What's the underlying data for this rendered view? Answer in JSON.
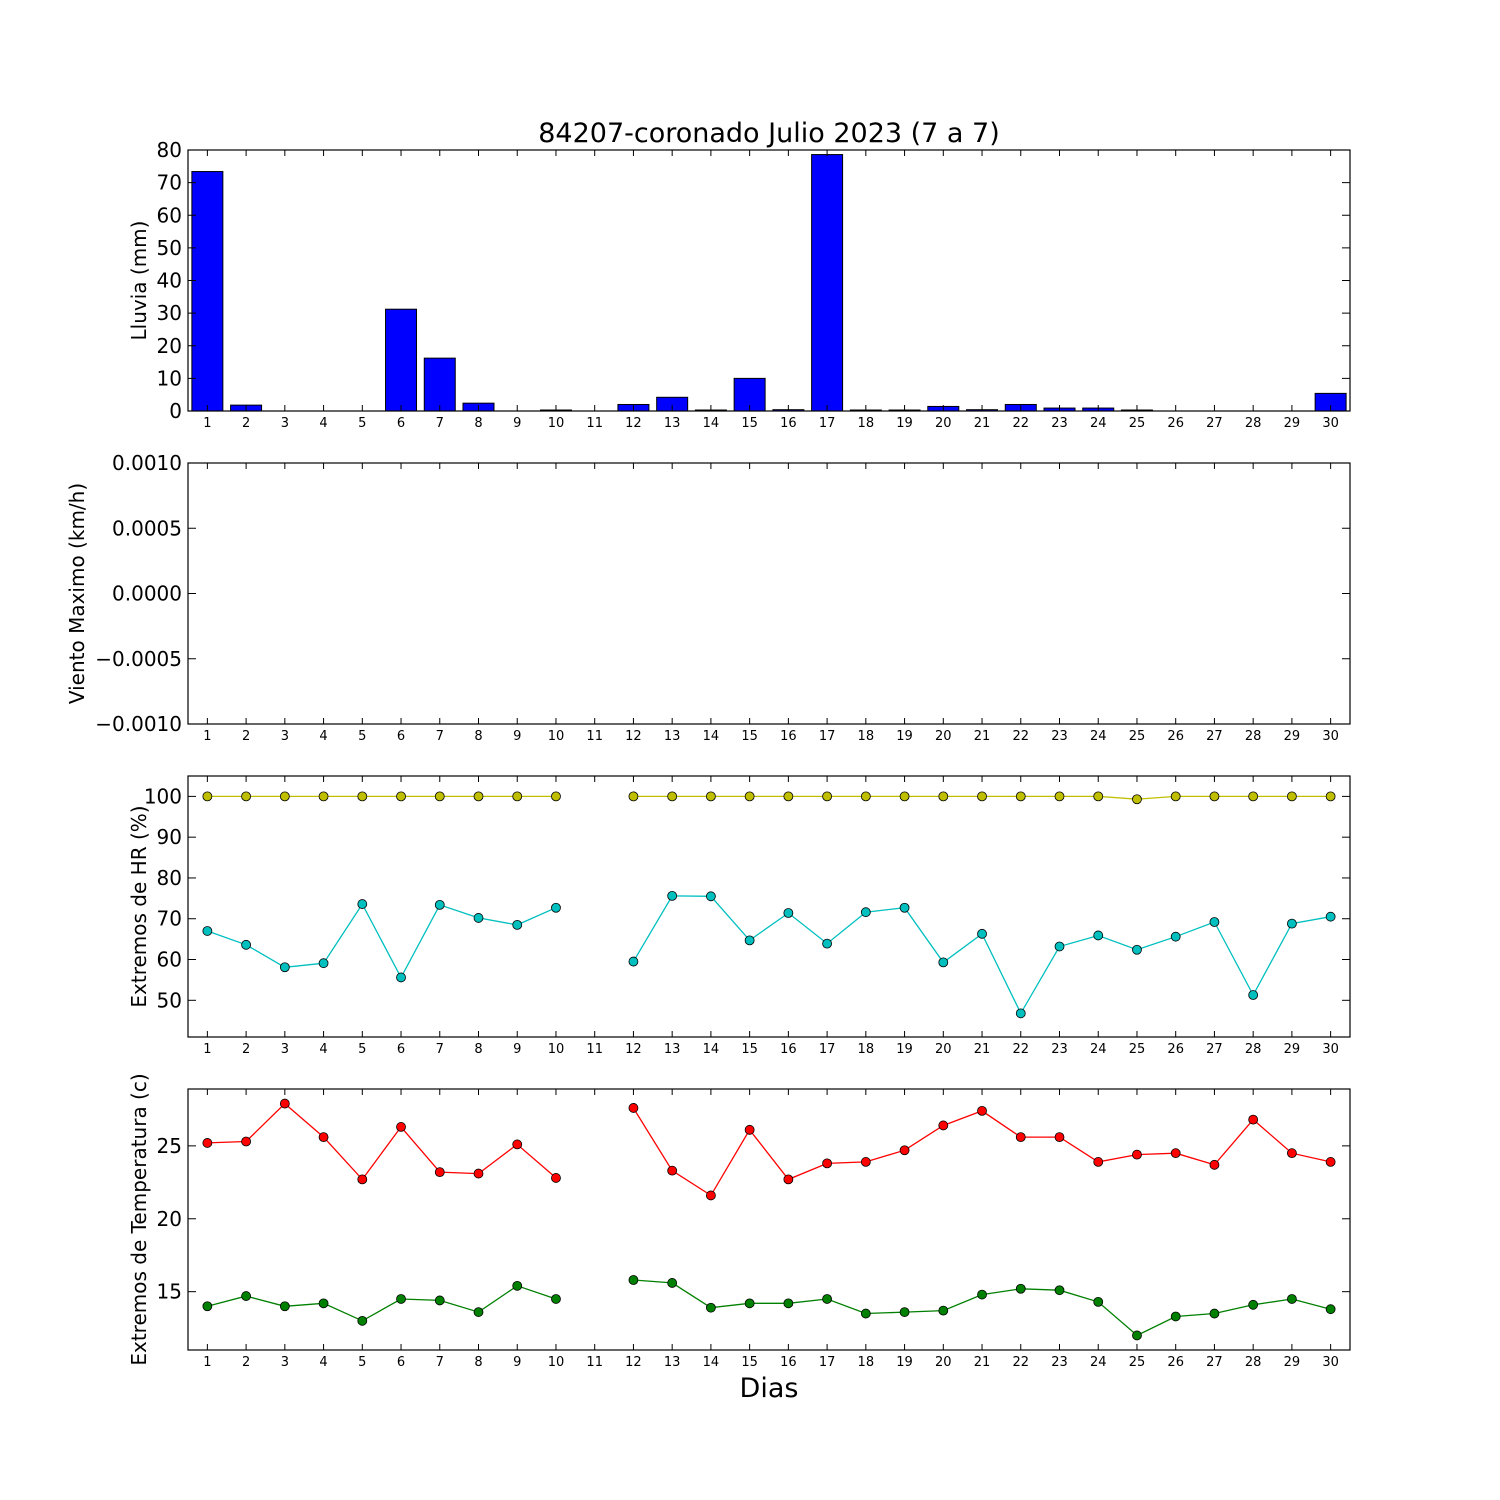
{
  "chart_data": [
    {
      "type": "bar",
      "title": "84207-coronado Julio 2023  (7 a 7)",
      "ylabel": "Lluvia (mm)",
      "xlabel": "",
      "ylim": [
        0,
        80
      ],
      "yticks": [
        0,
        10,
        20,
        30,
        40,
        50,
        60,
        70,
        80
      ],
      "ytick_labels": [
        "0",
        "10",
        "20",
        "30",
        "40",
        "50",
        "60",
        "70",
        "80"
      ],
      "x": [
        1,
        2,
        3,
        4,
        5,
        6,
        7,
        8,
        9,
        10,
        11,
        12,
        13,
        14,
        15,
        16,
        17,
        18,
        19,
        20,
        21,
        22,
        23,
        24,
        25,
        26,
        27,
        28,
        29,
        30
      ],
      "x_labels": [
        "1",
        "2",
        "3",
        "4",
        "5",
        "6",
        "7",
        "8",
        "9",
        "10",
        "11",
        "12",
        "13",
        "14",
        "15",
        "16",
        "17",
        "18",
        "19",
        "20",
        "21",
        "22",
        "23",
        "24",
        "25",
        "26",
        "27",
        "28",
        "29",
        "30"
      ],
      "series": [
        {
          "color": "#0000ff",
          "values": [
            73.4,
            1.8,
            0,
            0,
            0,
            31.2,
            16.2,
            2.4,
            0,
            0.3,
            null,
            2.0,
            4.2,
            0.3,
            10.0,
            0.4,
            78.6,
            0.3,
            0.3,
            1.4,
            0.4,
            2.0,
            0.9,
            0.9,
            0.3,
            0,
            0,
            0,
            0,
            5.4
          ]
        }
      ],
      "grid": false
    },
    {
      "type": "line",
      "ylabel": "Viento Maximo (km/h)",
      "xlabel": "",
      "ylim": [
        -0.001,
        0.001
      ],
      "yticks": [
        -0.001,
        -0.0005,
        0,
        0.0005,
        0.001
      ],
      "ytick_labels": [
        "−0.0010",
        "−0.0005",
        "0.0000",
        "0.0005",
        "0.0010"
      ],
      "x": [
        1,
        2,
        3,
        4,
        5,
        6,
        7,
        8,
        9,
        10,
        11,
        12,
        13,
        14,
        15,
        16,
        17,
        18,
        19,
        20,
        21,
        22,
        23,
        24,
        25,
        26,
        27,
        28,
        29,
        30
      ],
      "x_labels": [
        "1",
        "2",
        "3",
        "4",
        "5",
        "6",
        "7",
        "8",
        "9",
        "10",
        "11",
        "12",
        "13",
        "14",
        "15",
        "16",
        "17",
        "18",
        "19",
        "20",
        "21",
        "22",
        "23",
        "24",
        "25",
        "26",
        "27",
        "28",
        "29",
        "30"
      ],
      "series": [],
      "grid": false
    },
    {
      "type": "line",
      "ylabel": "Extremos de HR (%)",
      "xlabel": "",
      "ylim": [
        41,
        105
      ],
      "yticks": [
        50,
        60,
        70,
        80,
        90,
        100
      ],
      "ytick_labels": [
        "50",
        "60",
        "70",
        "80",
        "90",
        "100"
      ],
      "x": [
        1,
        2,
        3,
        4,
        5,
        6,
        7,
        8,
        9,
        10,
        11,
        12,
        13,
        14,
        15,
        16,
        17,
        18,
        19,
        20,
        21,
        22,
        23,
        24,
        25,
        26,
        27,
        28,
        29,
        30
      ],
      "x_labels": [
        "1",
        "2",
        "3",
        "4",
        "5",
        "6",
        "7",
        "8",
        "9",
        "10",
        "11",
        "12",
        "13",
        "14",
        "15",
        "16",
        "17",
        "18",
        "19",
        "20",
        "21",
        "22",
        "23",
        "24",
        "25",
        "26",
        "27",
        "28",
        "29",
        "30"
      ],
      "series": [
        {
          "color": "#bfbf00",
          "values": [
            100,
            100,
            100,
            100,
            100,
            100,
            100,
            100,
            100,
            100,
            null,
            100,
            100,
            100,
            100,
            100,
            100,
            100,
            100,
            100,
            100,
            100,
            100,
            100,
            99.3,
            100,
            100,
            100,
            100,
            100
          ]
        },
        {
          "color": "#00bfbf",
          "values": [
            67,
            63.6,
            58.1,
            59.1,
            73.6,
            55.6,
            73.4,
            70.2,
            68.5,
            72.7,
            null,
            59.5,
            75.6,
            75.5,
            64.7,
            71.4,
            63.9,
            71.6,
            72.7,
            59.3,
            66.3,
            46.8,
            63.2,
            65.9,
            62.4,
            65.6,
            69.2,
            51.3,
            68.8,
            70.5
          ]
        }
      ],
      "grid": false
    },
    {
      "type": "line",
      "ylabel": "Extremos de Temperatura (c)",
      "xlabel": "Dias",
      "ylim": [
        11,
        28.9
      ],
      "yticks": [
        15,
        20,
        25
      ],
      "ytick_labels": [
        "15",
        "20",
        "25"
      ],
      "x": [
        1,
        2,
        3,
        4,
        5,
        6,
        7,
        8,
        9,
        10,
        11,
        12,
        13,
        14,
        15,
        16,
        17,
        18,
        19,
        20,
        21,
        22,
        23,
        24,
        25,
        26,
        27,
        28,
        29,
        30
      ],
      "x_labels": [
        "1",
        "2",
        "3",
        "4",
        "5",
        "6",
        "7",
        "8",
        "9",
        "10",
        "11",
        "12",
        "13",
        "14",
        "15",
        "16",
        "17",
        "18",
        "19",
        "20",
        "21",
        "22",
        "23",
        "24",
        "25",
        "26",
        "27",
        "28",
        "29",
        "30"
      ],
      "series": [
        {
          "color": "#ff0000",
          "values": [
            25.2,
            25.3,
            27.9,
            25.6,
            22.7,
            26.3,
            23.2,
            23.1,
            25.1,
            22.8,
            null,
            27.6,
            23.3,
            21.6,
            26.1,
            22.7,
            23.8,
            23.9,
            24.7,
            26.4,
            27.4,
            25.6,
            25.6,
            23.9,
            24.4,
            24.5,
            23.7,
            26.8,
            24.5,
            23.9
          ]
        },
        {
          "color": "#008000",
          "values": [
            14.0,
            14.7,
            14.0,
            14.2,
            13.0,
            14.5,
            14.4,
            13.6,
            15.4,
            14.5,
            null,
            15.8,
            15.6,
            13.9,
            14.2,
            14.2,
            14.5,
            13.5,
            13.6,
            13.7,
            14.8,
            15.2,
            15.1,
            14.3,
            12.0,
            13.3,
            13.5,
            14.1,
            14.5,
            13.8
          ]
        }
      ],
      "grid": false
    }
  ]
}
